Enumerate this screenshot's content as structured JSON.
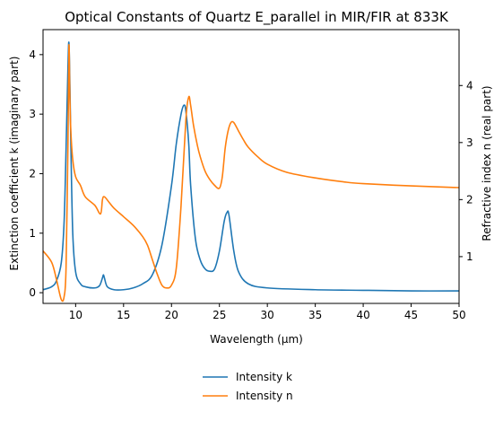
{
  "chart_data": {
    "type": "line",
    "title": "Optical Constants of Quartz E_parallel in MIR/FIR at 833K",
    "xlabel": "Wavelength (μm)",
    "ylabel_left": "Extinction coefficient k (imaginary part)",
    "ylabel_right": "Refractive index n (real part)",
    "xlim": [
      6.6,
      50
    ],
    "ylim_left": [
      -0.18,
      4.42
    ],
    "ylim_right": [
      0.18,
      4.98
    ],
    "x_ticks": [
      10,
      15,
      20,
      25,
      30,
      35,
      40,
      45,
      50
    ],
    "y_ticks_left": [
      0,
      1,
      2,
      3,
      4
    ],
    "y_ticks_right": [
      1,
      2,
      3,
      4
    ],
    "grid": false,
    "legend_position": "below-center",
    "series": [
      {
        "name": "Intensity k",
        "axis": "left",
        "color": "#1f77b4",
        "x": [
          6.6,
          7.5,
          8.0,
          8.5,
          8.8,
          9.0,
          9.2,
          9.3,
          9.4,
          9.5,
          9.7,
          10.0,
          10.5,
          11.0,
          12.0,
          12.5,
          12.8,
          12.9,
          13.0,
          13.3,
          14.0,
          15.0,
          16.0,
          17.0,
          18.0,
          19.0,
          20.0,
          20.5,
          21.0,
          21.3,
          21.5,
          21.8,
          22.0,
          22.5,
          23.0,
          23.5,
          24.0,
          24.5,
          25.0,
          25.5,
          25.8,
          26.0,
          26.5,
          27.0,
          28.0,
          30.0,
          35.0,
          40.0,
          45.0,
          50.0
        ],
        "values": [
          0.05,
          0.1,
          0.2,
          0.5,
          1.2,
          2.4,
          3.8,
          4.2,
          3.5,
          2.5,
          1.0,
          0.35,
          0.15,
          0.1,
          0.08,
          0.12,
          0.25,
          0.3,
          0.25,
          0.1,
          0.05,
          0.05,
          0.08,
          0.15,
          0.3,
          0.8,
          1.8,
          2.5,
          3.0,
          3.15,
          3.05,
          2.5,
          1.8,
          0.9,
          0.55,
          0.4,
          0.36,
          0.4,
          0.7,
          1.2,
          1.35,
          1.3,
          0.7,
          0.35,
          0.15,
          0.08,
          0.05,
          0.04,
          0.03,
          0.03
        ]
      },
      {
        "name": "Intensity n",
        "axis": "right",
        "color": "#ff7f0e",
        "x": [
          6.6,
          7.5,
          8.0,
          8.5,
          8.8,
          9.0,
          9.2,
          9.3,
          9.4,
          9.5,
          9.7,
          10.0,
          10.5,
          11.0,
          12.0,
          12.6,
          12.8,
          13.0,
          13.5,
          14.0,
          15.0,
          16.0,
          17.0,
          17.5,
          18.0,
          18.5,
          19.0,
          19.5,
          20.0,
          20.5,
          21.0,
          21.5,
          21.8,
          22.0,
          22.3,
          22.7,
          23.0,
          23.5,
          24.0,
          24.5,
          25.0,
          25.3,
          25.6,
          25.9,
          26.2,
          26.5,
          27.0,
          27.5,
          28.0,
          29.0,
          30.0,
          32.0,
          35.0,
          38.0,
          40.0,
          45.0,
          50.0
        ],
        "values": [
          1.1,
          0.9,
          0.6,
          0.25,
          0.3,
          0.8,
          3.0,
          4.7,
          3.8,
          3.2,
          2.7,
          2.4,
          2.25,
          2.05,
          1.9,
          1.75,
          2.0,
          2.05,
          1.95,
          1.85,
          1.7,
          1.55,
          1.35,
          1.2,
          0.95,
          0.7,
          0.5,
          0.45,
          0.5,
          0.8,
          1.9,
          3.4,
          3.8,
          3.65,
          3.3,
          2.95,
          2.75,
          2.5,
          2.35,
          2.25,
          2.2,
          2.4,
          2.9,
          3.2,
          3.35,
          3.35,
          3.2,
          3.05,
          2.92,
          2.75,
          2.62,
          2.48,
          2.38,
          2.31,
          2.28,
          2.24,
          2.21
        ]
      }
    ]
  }
}
